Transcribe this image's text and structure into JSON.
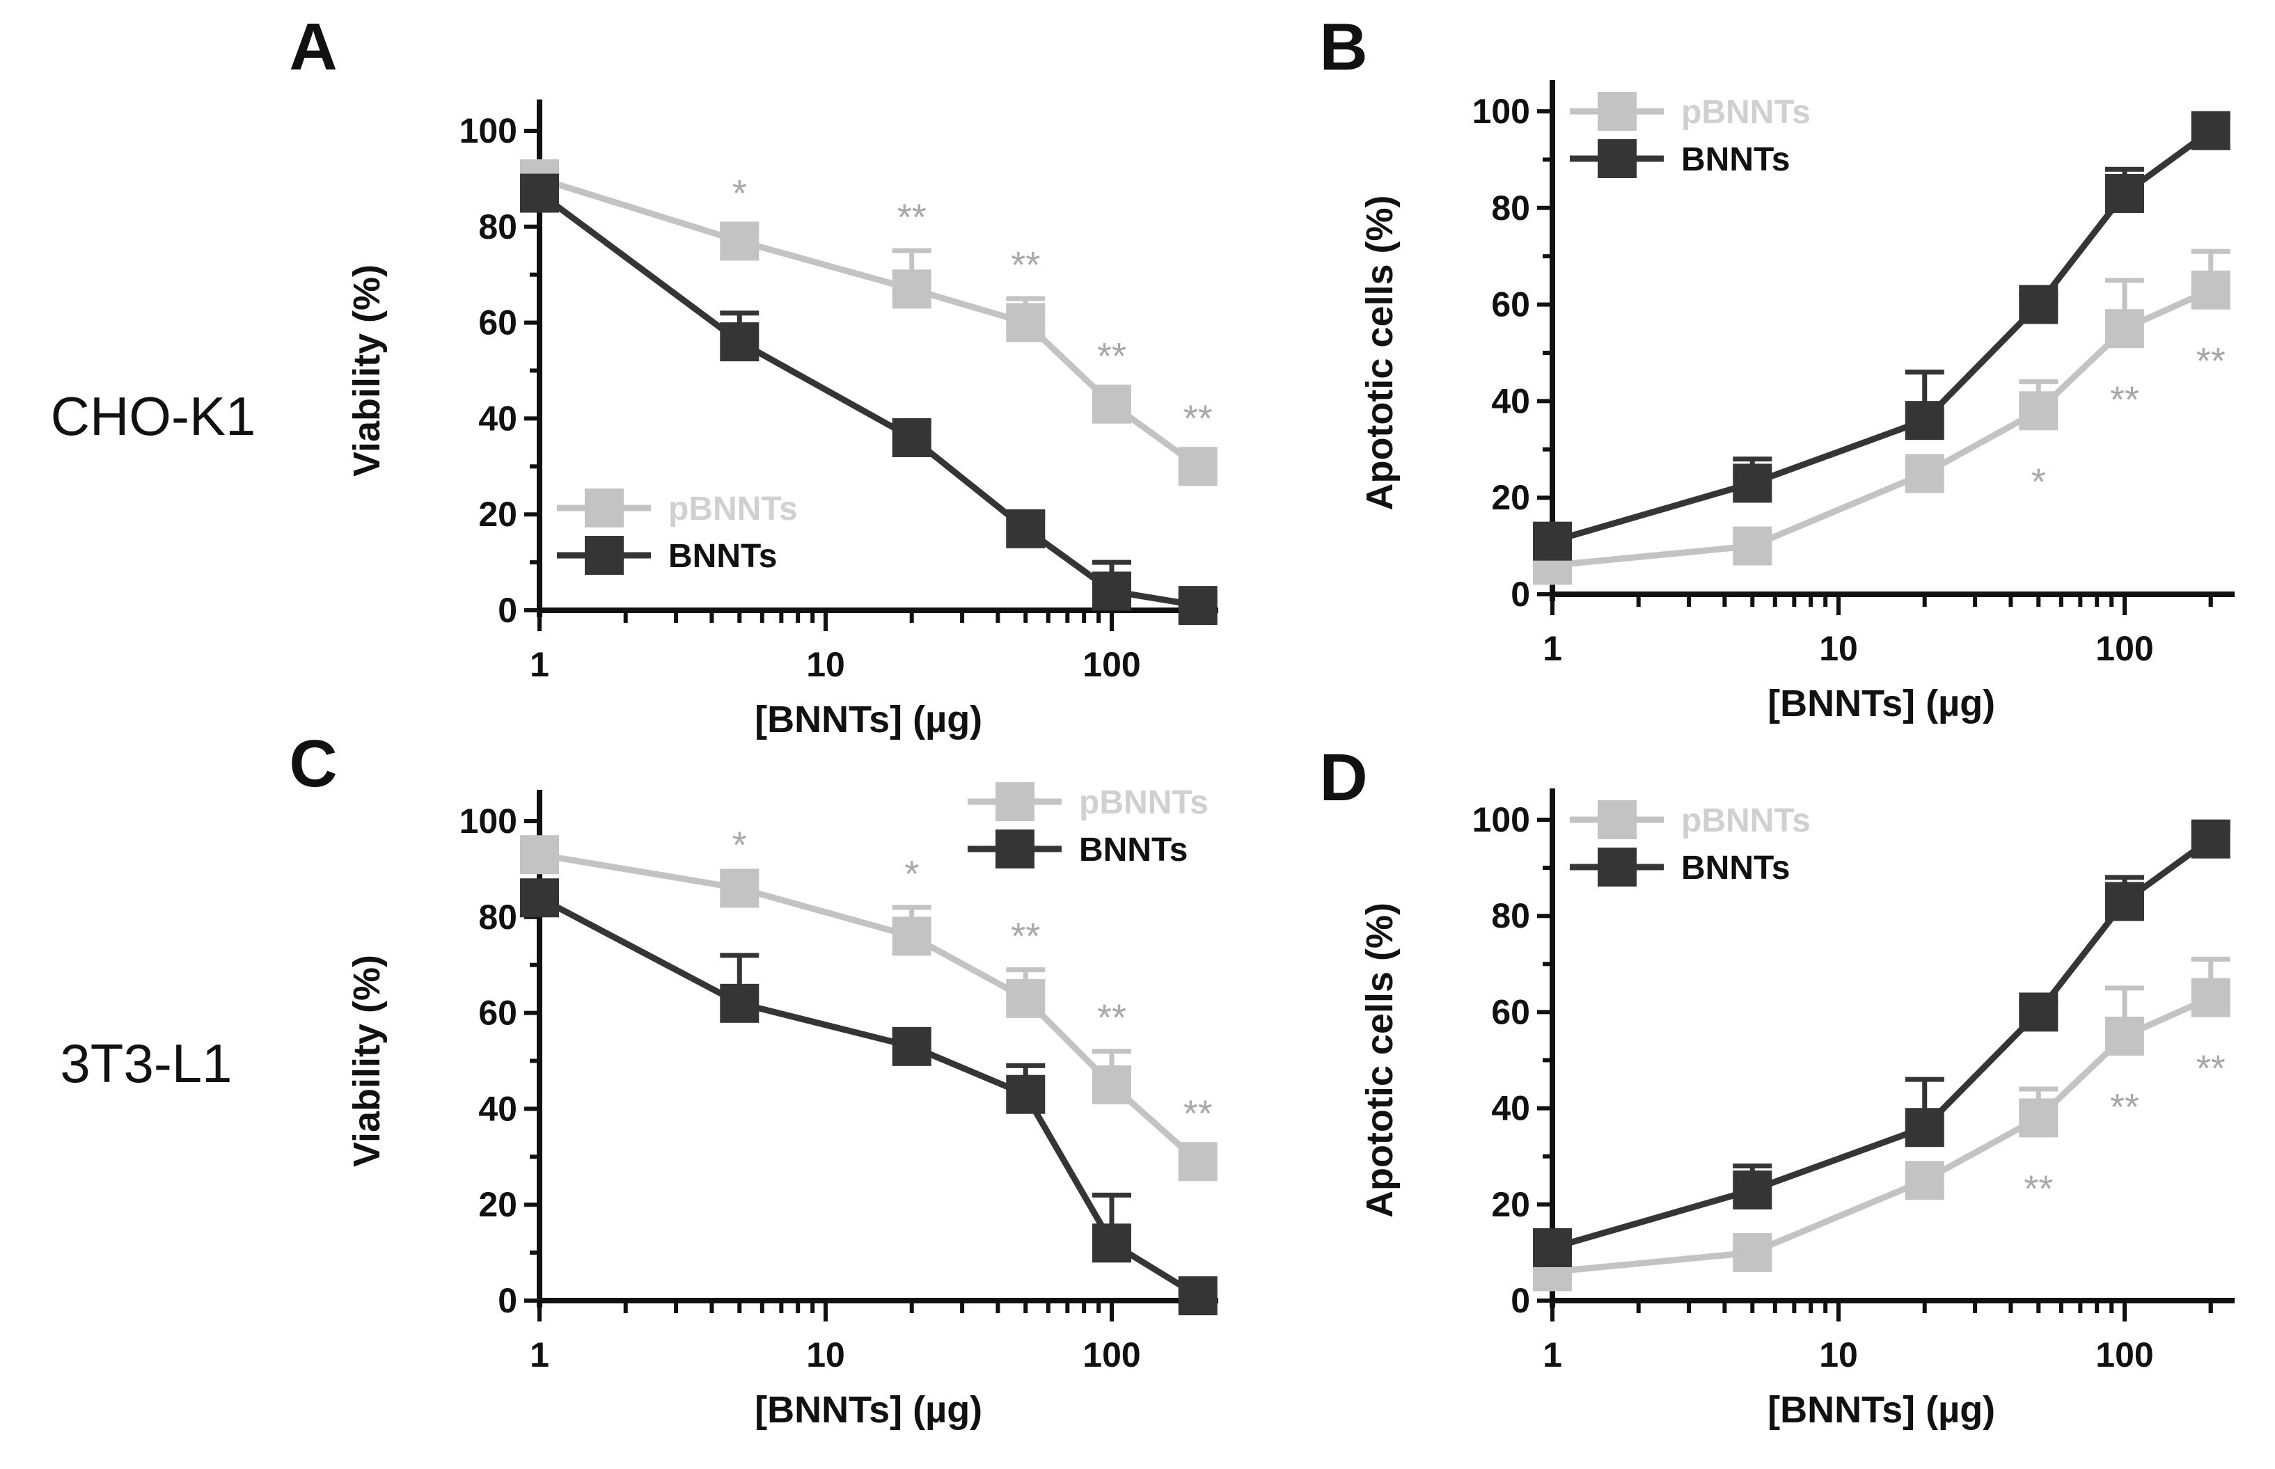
{
  "row_labels": [
    "CHO-K1",
    "3T3-L1"
  ],
  "colors": {
    "pBNNTs": "#c3c3c3",
    "BNNTs": "#353535",
    "axis": "#111111",
    "star": "#a8a8a8"
  },
  "chart_data": [
    {
      "panel": "A",
      "type": "line",
      "xscale": "log",
      "xlabel": "[BNNTs] (µg)",
      "ylabel": "Viability (%)",
      "xlim": [
        1,
        250
      ],
      "ylim": [
        0,
        100
      ],
      "xticks": [
        "1",
        "10",
        "100"
      ],
      "yticks": [
        "0",
        "20",
        "40",
        "60",
        "80",
        "100"
      ],
      "legend": [
        "pBNNTs",
        "BNNTs"
      ],
      "legend_position": "bottom-left",
      "x": [
        1,
        5,
        20,
        50,
        100,
        200
      ],
      "series": [
        {
          "name": "pBNNTs",
          "values": [
            90,
            77,
            67,
            60,
            43,
            30
          ],
          "errors": [
            1,
            3,
            8,
            5,
            3,
            3
          ]
        },
        {
          "name": "BNNTs",
          "values": [
            87,
            56,
            36,
            17,
            4,
            1
          ],
          "errors": [
            2,
            6,
            3,
            3,
            6,
            1
          ]
        }
      ],
      "annotations": [
        {
          "x": 5,
          "text": "*",
          "where": "above"
        },
        {
          "x": 20,
          "text": "**",
          "where": "above"
        },
        {
          "x": 50,
          "text": "**",
          "where": "above"
        },
        {
          "x": 100,
          "text": "**",
          "where": "above"
        },
        {
          "x": 200,
          "text": "**",
          "where": "above"
        }
      ]
    },
    {
      "panel": "B",
      "type": "line",
      "xscale": "log",
      "xlabel": "[BNNTs] (µg)",
      "ylabel": "Apototic cells (%)",
      "xlim": [
        1,
        250
      ],
      "ylim": [
        0,
        100
      ],
      "xticks": [
        "1",
        "10",
        "100"
      ],
      "yticks": [
        "0",
        "20",
        "40",
        "60",
        "80",
        "100"
      ],
      "legend": [
        "pBNNTs",
        "BNNTs"
      ],
      "legend_position": "top-left",
      "x": [
        1,
        5,
        20,
        50,
        100,
        200
      ],
      "series": [
        {
          "name": "pBNNTs",
          "values": [
            6,
            10,
            25,
            38,
            55,
            63
          ],
          "errors": [
            2,
            1,
            1,
            6,
            10,
            8
          ]
        },
        {
          "name": "BNNTs",
          "values": [
            11,
            23,
            36,
            60,
            83,
            96
          ],
          "errors": [
            2,
            5,
            10,
            2,
            5,
            3
          ]
        }
      ],
      "annotations": [
        {
          "x": 50,
          "text": "*",
          "where": "below"
        },
        {
          "x": 100,
          "text": "**",
          "where": "below"
        },
        {
          "x": 200,
          "text": "**",
          "where": "below"
        }
      ]
    },
    {
      "panel": "C",
      "type": "line",
      "xscale": "log",
      "xlabel": "[BNNTs] (µg)",
      "ylabel": "Viability (%)",
      "xlim": [
        1,
        250
      ],
      "ylim": [
        0,
        100
      ],
      "xticks": [
        "1",
        "10",
        "100"
      ],
      "yticks": [
        "0",
        "20",
        "40",
        "60",
        "80",
        "100"
      ],
      "legend": [
        "pBNNTs",
        "BNNTs"
      ],
      "legend_position": "top-right",
      "x": [
        1,
        5,
        20,
        50,
        100,
        200
      ],
      "series": [
        {
          "name": "pBNNTs",
          "values": [
            93,
            86,
            76,
            63,
            45,
            29
          ],
          "errors": [
            2,
            2,
            6,
            6,
            7,
            3
          ]
        },
        {
          "name": "BNNTs",
          "values": [
            84,
            62,
            53,
            43,
            12,
            1
          ],
          "errors": [
            3,
            10,
            3,
            6,
            10,
            1
          ]
        }
      ],
      "annotations": [
        {
          "x": 5,
          "text": "*",
          "where": "above"
        },
        {
          "x": 20,
          "text": "*",
          "where": "above"
        },
        {
          "x": 50,
          "text": "**",
          "where": "above"
        },
        {
          "x": 100,
          "text": "**",
          "where": "above"
        },
        {
          "x": 200,
          "text": "**",
          "where": "above"
        }
      ]
    },
    {
      "panel": "D",
      "type": "line",
      "xscale": "log",
      "xlabel": "[BNNTs] (µg)",
      "ylabel": "Apototic cells (%)",
      "xlim": [
        1,
        250
      ],
      "ylim": [
        0,
        100
      ],
      "xticks": [
        "1",
        "10",
        "100"
      ],
      "yticks": [
        "0",
        "20",
        "40",
        "60",
        "80",
        "100"
      ],
      "legend": [
        "pBNNTs",
        "BNNTs"
      ],
      "legend_position": "top-left",
      "x": [
        1,
        5,
        20,
        50,
        100,
        200
      ],
      "series": [
        {
          "name": "pBNNTs",
          "values": [
            6,
            10,
            25,
            38,
            55,
            63
          ],
          "errors": [
            2,
            1,
            1,
            6,
            10,
            8
          ]
        },
        {
          "name": "BNNTs",
          "values": [
            11,
            23,
            36,
            60,
            83,
            96
          ],
          "errors": [
            2,
            5,
            10,
            2,
            5,
            3
          ]
        }
      ],
      "annotations": [
        {
          "x": 50,
          "text": "**",
          "where": "below"
        },
        {
          "x": 100,
          "text": "**",
          "where": "below"
        },
        {
          "x": 200,
          "text": "**",
          "where": "below"
        }
      ]
    }
  ]
}
